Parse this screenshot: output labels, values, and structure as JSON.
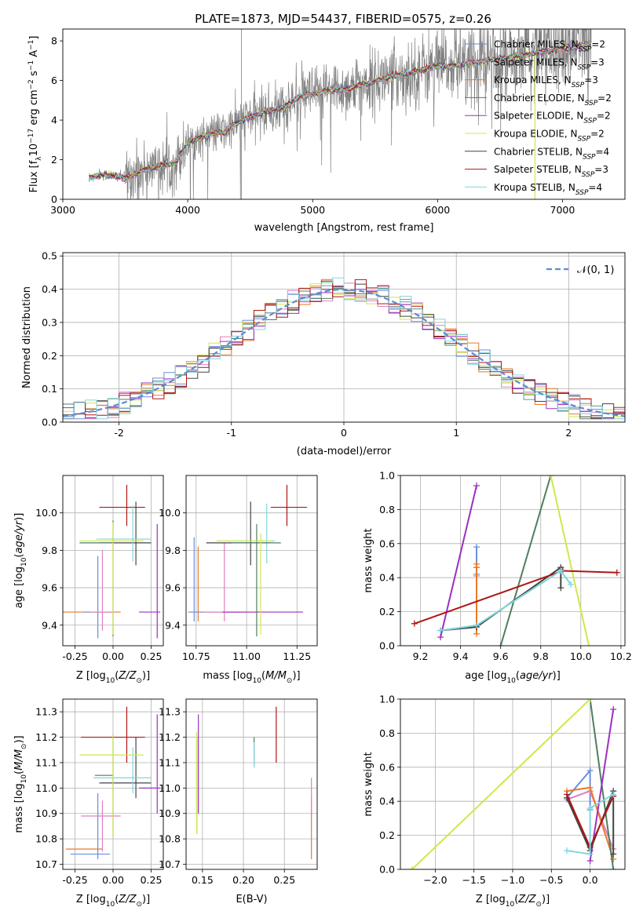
{
  "figure": {
    "title": "PLATE=1873, MJD=54437, FIBERID=0575, z=0.26"
  },
  "colors": {
    "Chabrier MILES": "#6a8fdc",
    "Salpeter MILES": "#e27fbd",
    "Kroupa MILES": "#e87a27",
    "Chabrier ELODIE": "#4f7f5f",
    "Salpeter ELODIE": "#9b30c0",
    "Kroupa ELODIE": "#cfe84a",
    "Chabrier STELIB": "#444444",
    "Salpeter STELIB": "#b01515",
    "Kroupa STELIB": "#7fd6df",
    "data": "#808080",
    "normal": "#5b8bd6",
    "grid": "#b0b0b0"
  },
  "chart_data": [
    {
      "id": "spectrum",
      "type": "line",
      "title": "PLATE=1873, MJD=54437, FIBERID=0575, z=0.26",
      "xlabel": "wavelength [Angstrom, rest frame]",
      "ylabel": "Flux [f_λ 10^-17 erg cm^-2 s^-1 A^-1]",
      "xlim": [
        3000,
        7500
      ],
      "ylim": [
        0,
        8.6
      ],
      "xticks": [
        3000,
        4000,
        5000,
        6000,
        7000
      ],
      "yticks": [
        0,
        2,
        4,
        6,
        8
      ],
      "grid": false,
      "legend_position": "top-right",
      "data_wavelength_range": [
        3210,
        7230
      ],
      "continuum_points": [
        [
          3210,
          1.1
        ],
        [
          3300,
          1.25
        ],
        [
          3400,
          1.2
        ],
        [
          3500,
          1.05
        ],
        [
          3600,
          1.35
        ],
        [
          3700,
          1.6
        ],
        [
          3800,
          1.7
        ],
        [
          3900,
          1.8
        ],
        [
          4000,
          2.9
        ],
        [
          4100,
          3.1
        ],
        [
          4200,
          3.35
        ],
        [
          4300,
          3.4
        ],
        [
          4400,
          3.9
        ],
        [
          4500,
          4.15
        ],
        [
          4600,
          4.4
        ],
        [
          4700,
          4.5
        ],
        [
          4800,
          4.75
        ],
        [
          4900,
          5.2
        ],
        [
          5000,
          5.3
        ],
        [
          5100,
          5.45
        ],
        [
          5200,
          5.55
        ],
        [
          5300,
          5.6
        ],
        [
          5400,
          5.8
        ],
        [
          5500,
          5.95
        ],
        [
          5600,
          6.15
        ],
        [
          5700,
          6.3
        ],
        [
          5800,
          6.4
        ],
        [
          5900,
          6.6
        ],
        [
          6000,
          6.75
        ],
        [
          6100,
          6.7
        ],
        [
          6200,
          6.85
        ],
        [
          6300,
          6.9
        ],
        [
          6400,
          7.0
        ],
        [
          6500,
          7.1
        ],
        [
          6600,
          7.2
        ],
        [
          6700,
          7.3
        ],
        [
          6800,
          7.4
        ],
        [
          6900,
          7.5
        ],
        [
          7000,
          7.6
        ],
        [
          7100,
          7.7
        ],
        [
          7230,
          7.8
        ]
      ],
      "series": [
        {
          "name": "Chabrier MILES",
          "nssp": "2"
        },
        {
          "name": "Salpeter MILES",
          "nssp": "3"
        },
        {
          "name": "Kroupa MILES",
          "nssp": "3"
        },
        {
          "name": "Chabrier ELODIE",
          "nssp": "2"
        },
        {
          "name": "Salpeter ELODIE",
          "nssp": "2"
        },
        {
          "name": "Kroupa ELODIE",
          "nssp": "2"
        },
        {
          "name": "Chabrier STELIB",
          "nssp": "4"
        },
        {
          "name": "Salpeter STELIB",
          "nssp": "3"
        },
        {
          "name": "Kroupa STELIB",
          "nssp": "4"
        }
      ]
    },
    {
      "id": "residuals",
      "type": "step",
      "xlabel": "(data-model)/error",
      "ylabel": "Normed distribution",
      "xlim": [
        -2.5,
        2.5
      ],
      "ylim": [
        0,
        0.51
      ],
      "xticks": [
        -2,
        -1,
        0,
        1,
        2
      ],
      "yticks": [
        0.0,
        0.1,
        0.2,
        0.3,
        0.4,
        0.5
      ],
      "grid": true,
      "legend_position": "top-right",
      "legend_label": "𝒩(0, 1)",
      "bin_width": 0.1
    },
    {
      "id": "z_age",
      "type": "errorbar",
      "xlabel": "Z [log10(Z/Z⊙)]",
      "ylabel": "age [log10(age/yr)]",
      "xlim": [
        -0.33,
        0.33
      ],
      "ylim": [
        9.29,
        10.2
      ],
      "xticks": [
        -0.25,
        0.0,
        0.25
      ],
      "yticks": [
        9.4,
        9.6,
        9.8,
        10.0
      ],
      "points": [
        {
          "series": "Salpeter STELIB",
          "x": 0.09,
          "y": 10.03,
          "xerr": [
            0.18,
            0.12
          ],
          "yerr": [
            0.1,
            0.12
          ]
        },
        {
          "series": "Kroupa MILES",
          "x": -0.25,
          "y": 9.47,
          "xerr": [
            0.08,
            0.3
          ],
          "yerr": [
            0,
            0
          ]
        },
        {
          "series": "Chabrier MILES",
          "x": -0.1,
          "y": 9.47,
          "xerr": [
            0.1,
            0.08
          ],
          "yerr": [
            0.14,
            0.3
          ]
        },
        {
          "series": "Salpeter MILES",
          "x": -0.07,
          "y": 9.47,
          "xerr": [
            0.08,
            0.08
          ],
          "yerr": [
            0.1,
            0.33
          ]
        },
        {
          "series": "Salpeter ELODIE",
          "x": 0.29,
          "y": 9.47,
          "xerr": [
            0.12,
            0.02
          ],
          "yerr": [
            0.14,
            0.47
          ]
        },
        {
          "series": "Chabrier STELIB",
          "x": 0.15,
          "y": 9.84,
          "xerr": [
            0.24,
            0.1
          ],
          "yerr": [
            0.12,
            0.22
          ]
        },
        {
          "series": "Kroupa STELIB",
          "x": 0.13,
          "y": 9.86,
          "xerr": [
            0.24,
            0.12
          ],
          "yerr": [
            0.12,
            0.18
          ]
        },
        {
          "series": "Chabrier ELODIE",
          "x": 0.0,
          "y": 9.84,
          "xerr": [
            0.22,
            0.0
          ],
          "yerr": [
            0.5,
            0.12
          ]
        },
        {
          "series": "Kroupa ELODIE",
          "x": 0.0,
          "y": 9.85,
          "xerr": [
            0.22,
            0.2
          ],
          "yerr": [
            0.5,
            0.1
          ]
        }
      ]
    },
    {
      "id": "mass_age",
      "type": "errorbar",
      "xlabel": "mass [log10(M/M⊙)]",
      "ylabel": "",
      "xlim": [
        10.7,
        11.35
      ],
      "ylim": [
        9.29,
        10.2
      ],
      "xticks": [
        10.75,
        11.0,
        11.25
      ],
      "yticks": [
        9.4,
        9.6,
        9.8,
        10.0
      ],
      "points": [
        {
          "series": "Salpeter STELIB",
          "x": 11.2,
          "y": 10.03,
          "xerr": [
            0.08,
            0.1
          ],
          "yerr": [
            0.1,
            0.12
          ]
        },
        {
          "series": "Kroupa MILES",
          "x": 10.76,
          "y": 9.47,
          "xerr": [
            0.05,
            0.3
          ],
          "yerr": [
            0.05,
            0.35
          ]
        },
        {
          "series": "Chabrier MILES",
          "x": 10.74,
          "y": 9.47,
          "xerr": [
            0.02,
            0.22
          ],
          "yerr": [
            0.05,
            0.4
          ]
        },
        {
          "series": "Salpeter MILES",
          "x": 10.89,
          "y": 9.47,
          "xerr": [
            0.1,
            0.12
          ],
          "yerr": [
            0.05,
            0.37
          ]
        },
        {
          "series": "Salpeter ELODIE",
          "x": 11.0,
          "y": 9.47,
          "xerr": [
            0.12,
            0.28
          ],
          "yerr": [
            0.0,
            0.0
          ]
        },
        {
          "series": "Chabrier STELIB",
          "x": 11.02,
          "y": 9.84,
          "xerr": [
            0.22,
            0.1
          ],
          "yerr": [
            0.12,
            0.22
          ]
        },
        {
          "series": "Kroupa STELIB",
          "x": 11.1,
          "y": 9.85,
          "xerr": [
            0.24,
            0.04
          ],
          "yerr": [
            0.12,
            0.2
          ]
        },
        {
          "series": "Chabrier ELODIE",
          "x": 11.05,
          "y": 9.84,
          "xerr": [
            0.12,
            0.12
          ],
          "yerr": [
            0.5,
            0.1
          ]
        },
        {
          "series": "Kroupa ELODIE",
          "x": 11.07,
          "y": 9.85,
          "xerr": [
            0.22,
            0.05
          ],
          "yerr": [
            0.5,
            0.04
          ]
        }
      ]
    },
    {
      "id": "age_weight",
      "type": "line",
      "xlabel": "age [log10(age/yr)]",
      "ylabel": "mass weight",
      "xlim": [
        9.1,
        10.22
      ],
      "ylim": [
        0,
        1
      ],
      "xticks": [
        9.2,
        9.4,
        9.6,
        9.8,
        10.0,
        10.2
      ],
      "yticks": [
        0.0,
        0.2,
        0.4,
        0.6,
        0.8,
        1.0
      ],
      "grid": true,
      "series": [
        {
          "name": "Chabrier MILES",
          "x": [
            9.48,
            9.48
          ],
          "y": [
            0.42,
            0.58
          ]
        },
        {
          "name": "Salpeter MILES",
          "x": [
            9.48,
            9.48
          ],
          "y": [
            0.46,
            0.41
          ]
        },
        {
          "name": "Kroupa MILES",
          "x": [
            9.48,
            9.48,
            9.48
          ],
          "y": [
            0.07,
            0.46,
            0.48
          ]
        },
        {
          "name": "Chabrier ELODIE",
          "x": [
            9.6,
            9.85
          ],
          "y": [
            0.0,
            1.0
          ]
        },
        {
          "name": "Salpeter ELODIE",
          "x": [
            9.3,
            9.48
          ],
          "y": [
            0.05,
            0.94
          ]
        },
        {
          "name": "Kroupa ELODIE",
          "x": [
            9.85,
            10.04
          ],
          "y": [
            1.0,
            0.0
          ]
        },
        {
          "name": "Chabrier STELIB",
          "x": [
            9.3,
            9.48,
            9.9,
            9.9
          ],
          "y": [
            0.09,
            0.11,
            0.46,
            0.34
          ]
        },
        {
          "name": "Salpeter STELIB",
          "x": [
            9.17,
            9.91,
            10.18
          ],
          "y": [
            0.13,
            0.44,
            0.43
          ]
        },
        {
          "name": "Kroupa STELIB",
          "x": [
            9.3,
            9.48,
            9.9,
            9.95
          ],
          "y": [
            0.09,
            0.12,
            0.44,
            0.36
          ]
        }
      ]
    },
    {
      "id": "z_mass",
      "type": "errorbar",
      "xlabel": "Z [log10(Z/Z⊙)]",
      "ylabel": "mass [log10(M/M⊙)]",
      "xlim": [
        -0.33,
        0.33
      ],
      "ylim": [
        10.68,
        11.35
      ],
      "xticks": [
        -0.25,
        0.0,
        0.25
      ],
      "yticks": [
        10.7,
        10.8,
        10.9,
        11.0,
        11.1,
        11.2,
        11.3
      ],
      "points": [
        {
          "series": "Salpeter STELIB",
          "x": 0.09,
          "y": 11.2,
          "xerr": [
            0.3,
            0.12
          ],
          "yerr": [
            0.1,
            0.12
          ]
        },
        {
          "series": "Kroupa MILES",
          "x": -0.27,
          "y": 10.76,
          "xerr": [
            0.04,
            0.2
          ],
          "yerr": [
            0,
            0
          ]
        },
        {
          "series": "Chabrier MILES",
          "x": -0.1,
          "y": 10.74,
          "xerr": [
            0.18,
            0.08
          ],
          "yerr": [
            0.02,
            0.24
          ]
        },
        {
          "series": "Salpeter MILES",
          "x": -0.07,
          "y": 10.89,
          "xerr": [
            0.14,
            0.12
          ],
          "yerr": [
            0.14,
            0.06
          ]
        },
        {
          "series": "Salpeter ELODIE",
          "x": 0.29,
          "y": 11.0,
          "xerr": [
            0.12,
            0.02
          ],
          "yerr": [
            0.1,
            0.29
          ]
        },
        {
          "series": "Chabrier STELIB",
          "x": 0.15,
          "y": 11.02,
          "xerr": [
            0.24,
            0.1
          ],
          "yerr": [
            0.06,
            0.18
          ]
        },
        {
          "series": "Kroupa STELIB",
          "x": 0.13,
          "y": 11.04,
          "xerr": [
            0.26,
            0.12
          ],
          "yerr": [
            0.06,
            0.12
          ]
        },
        {
          "series": "Chabrier ELODIE",
          "x": 0.0,
          "y": 11.05,
          "xerr": [
            0.12,
            0.0
          ],
          "yerr": [
            0.24,
            0.16
          ]
        },
        {
          "series": "Kroupa ELODIE",
          "x": 0.0,
          "y": 11.13,
          "xerr": [
            0.22,
            0.2
          ],
          "yerr": [
            0.32,
            0.08
          ]
        }
      ]
    },
    {
      "id": "ebv_mass",
      "type": "errorbar",
      "xlabel": "E(B-V)",
      "ylabel": "",
      "xlim": [
        0.13,
        0.29
      ],
      "ylim": [
        10.68,
        11.35
      ],
      "xticks": [
        0.15,
        0.2,
        0.25
      ],
      "yticks": [
        10.7,
        10.8,
        10.9,
        11.0,
        11.1,
        11.2,
        11.3
      ],
      "points": [
        {
          "series": "Salpeter STELIB",
          "x": 0.24,
          "y": 11.2,
          "xerr": [
            0,
            0
          ],
          "yerr": [
            0.1,
            0.12
          ]
        },
        {
          "series": "Kroupa MILES",
          "x": 0.283,
          "y": 10.76,
          "xerr": [
            0,
            0
          ],
          "yerr": [
            0.04,
            0.2
          ]
        },
        {
          "series": "Salpeter MILES",
          "x": 0.283,
          "y": 11.0,
          "xerr": [
            0,
            0
          ],
          "yerr": [
            0.1,
            0.04
          ]
        },
        {
          "series": "Salpeter ELODIE",
          "x": 0.145,
          "y": 11.0,
          "xerr": [
            0,
            0
          ],
          "yerr": [
            0.1,
            0.29
          ]
        },
        {
          "series": "Chabrier STELIB",
          "x": 0.143,
          "y": 11.0,
          "xerr": [
            0,
            0
          ],
          "yerr": [
            0.18,
            0.2
          ]
        },
        {
          "series": "Kroupa ELODIE",
          "x": 0.143,
          "y": 10.9,
          "xerr": [
            0,
            0
          ],
          "yerr": [
            0.08,
            0.32
          ]
        },
        {
          "series": "Chabrier ELODIE",
          "x": 0.213,
          "y": 11.15,
          "xerr": [
            0,
            0
          ],
          "yerr": [
            0.06,
            0.05
          ]
        },
        {
          "series": "Kroupa STELIB",
          "x": 0.213,
          "y": 11.1,
          "xerr": [
            0,
            0
          ],
          "yerr": [
            0.02,
            0.08
          ]
        }
      ]
    },
    {
      "id": "z_weight",
      "type": "line",
      "xlabel": "Z [log10(Z/Z⊙)]",
      "ylabel": "mass weight",
      "xlim": [
        -2.45,
        0.45
      ],
      "ylim": [
        0,
        1
      ],
      "xticks": [
        -2.0,
        -1.5,
        -1.0,
        -0.5,
        0.0
      ],
      "yticks": [
        0.0,
        0.2,
        0.4,
        0.6,
        0.8,
        1.0
      ],
      "grid": true,
      "series": [
        {
          "name": "Chabrier MILES",
          "x": [
            -0.3,
            0.0,
            0.0
          ],
          "y": [
            0.42,
            0.58,
            0.35
          ]
        },
        {
          "name": "Salpeter MILES",
          "x": [
            -0.3,
            0.0,
            0.3
          ],
          "y": [
            0.41,
            0.46,
            0.12
          ]
        },
        {
          "name": "Kroupa MILES",
          "x": [
            -0.3,
            0.0,
            0.3
          ],
          "y": [
            0.46,
            0.48,
            0.06
          ]
        },
        {
          "name": "Chabrier ELODIE",
          "x": [
            0.0,
            0.3
          ],
          "y": [
            1.0,
            0.0
          ]
        },
        {
          "name": "Salpeter ELODIE",
          "x": [
            0.0,
            0.3
          ],
          "y": [
            0.05,
            0.94
          ]
        },
        {
          "name": "Kroupa ELODIE",
          "x": [
            -2.3,
            0.0
          ],
          "y": [
            0.0,
            1.0
          ]
        },
        {
          "name": "Chabrier STELIB",
          "x": [
            -0.3,
            0.0,
            0.3,
            0.3
          ],
          "y": [
            0.42,
            0.11,
            0.46,
            0.09
          ]
        },
        {
          "name": "Salpeter STELIB",
          "x": [
            -0.3,
            0.0,
            0.3
          ],
          "y": [
            0.44,
            0.13,
            0.43
          ]
        },
        {
          "name": "Kroupa STELIB",
          "x": [
            -0.3,
            0.0,
            0.0,
            0.3
          ],
          "y": [
            0.11,
            0.09,
            0.36,
            0.44
          ]
        }
      ]
    }
  ]
}
